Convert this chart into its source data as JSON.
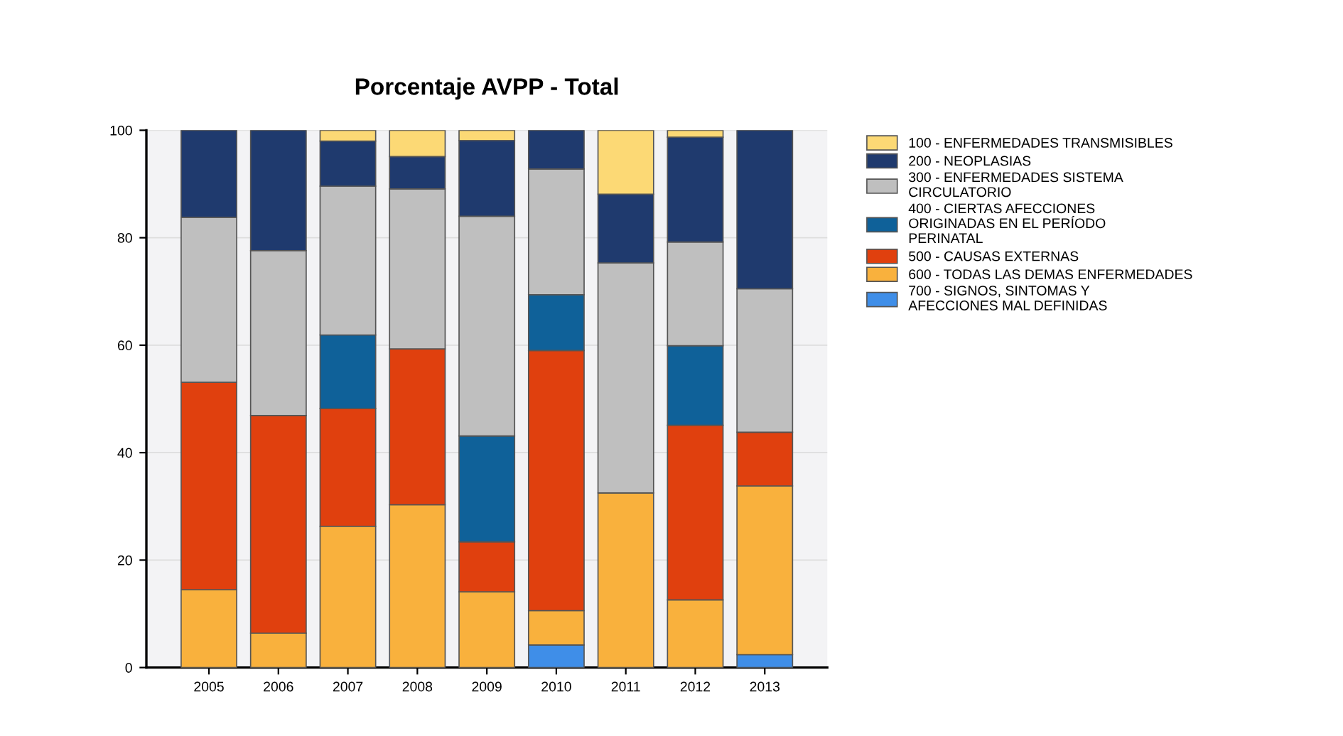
{
  "chart_data": {
    "type": "bar",
    "title": "Porcentaje AVPP - Total",
    "stacked": true,
    "categories": [
      "2005",
      "2006",
      "2007",
      "2008",
      "2009",
      "2010",
      "2011",
      "2012",
      "2013"
    ],
    "series": [
      {
        "name": "700 - SIGNOS, SINTOMAS Y\nAFECCIONES MAL DEFINIDAS",
        "color": "#3f8ee8",
        "values": [
          null,
          null,
          null,
          null,
          null,
          4.2,
          null,
          null,
          2.4
        ]
      },
      {
        "name": "600 - TODAS LAS DEMAS ENFERMEDADES",
        "color": "#f9b13d",
        "values": [
          14.5,
          6.4,
          26.3,
          30.3,
          14.1,
          6.4,
          32.5,
          12.6,
          31.4
        ]
      },
      {
        "name": "500 - CAUSAS EXTERNAS",
        "color": "#e0400e",
        "values": [
          38.6,
          40.5,
          21.9,
          29.0,
          9.3,
          48.4,
          null,
          32.5,
          10.0
        ]
      },
      {
        "name": "400 - CIERTAS AFECCIONES\nORIGINADAS EN EL PERÍODO\nPERINATAL",
        "color": "#0f6199",
        "values": [
          null,
          null,
          13.7,
          null,
          19.7,
          10.4,
          null,
          14.8,
          null
        ]
      },
      {
        "name": "300 - ENFERMEDADES SISTEMA\nCIRCULATORIO",
        "color": "#bfbfbf",
        "values": [
          30.7,
          30.7,
          27.7,
          29.8,
          40.9,
          23.4,
          42.8,
          19.3,
          26.7
        ]
      },
      {
        "name": "200 - NEOPLASIAS",
        "color": "#1f3a6e",
        "values": [
          16.2,
          22.4,
          8.4,
          6.0,
          14.1,
          7.2,
          12.8,
          19.5,
          29.5
        ]
      },
      {
        "name": "100 - ENFERMEDADES TRANSMISIBLES",
        "color": "#fcd975",
        "values": [
          null,
          null,
          2.0,
          4.9,
          1.9,
          null,
          11.9,
          1.3,
          null
        ]
      }
    ],
    "ylim": [
      0,
      100
    ],
    "yticks": [
      0,
      20,
      40,
      60,
      80,
      100
    ],
    "grid": "y",
    "legend": "top right"
  }
}
